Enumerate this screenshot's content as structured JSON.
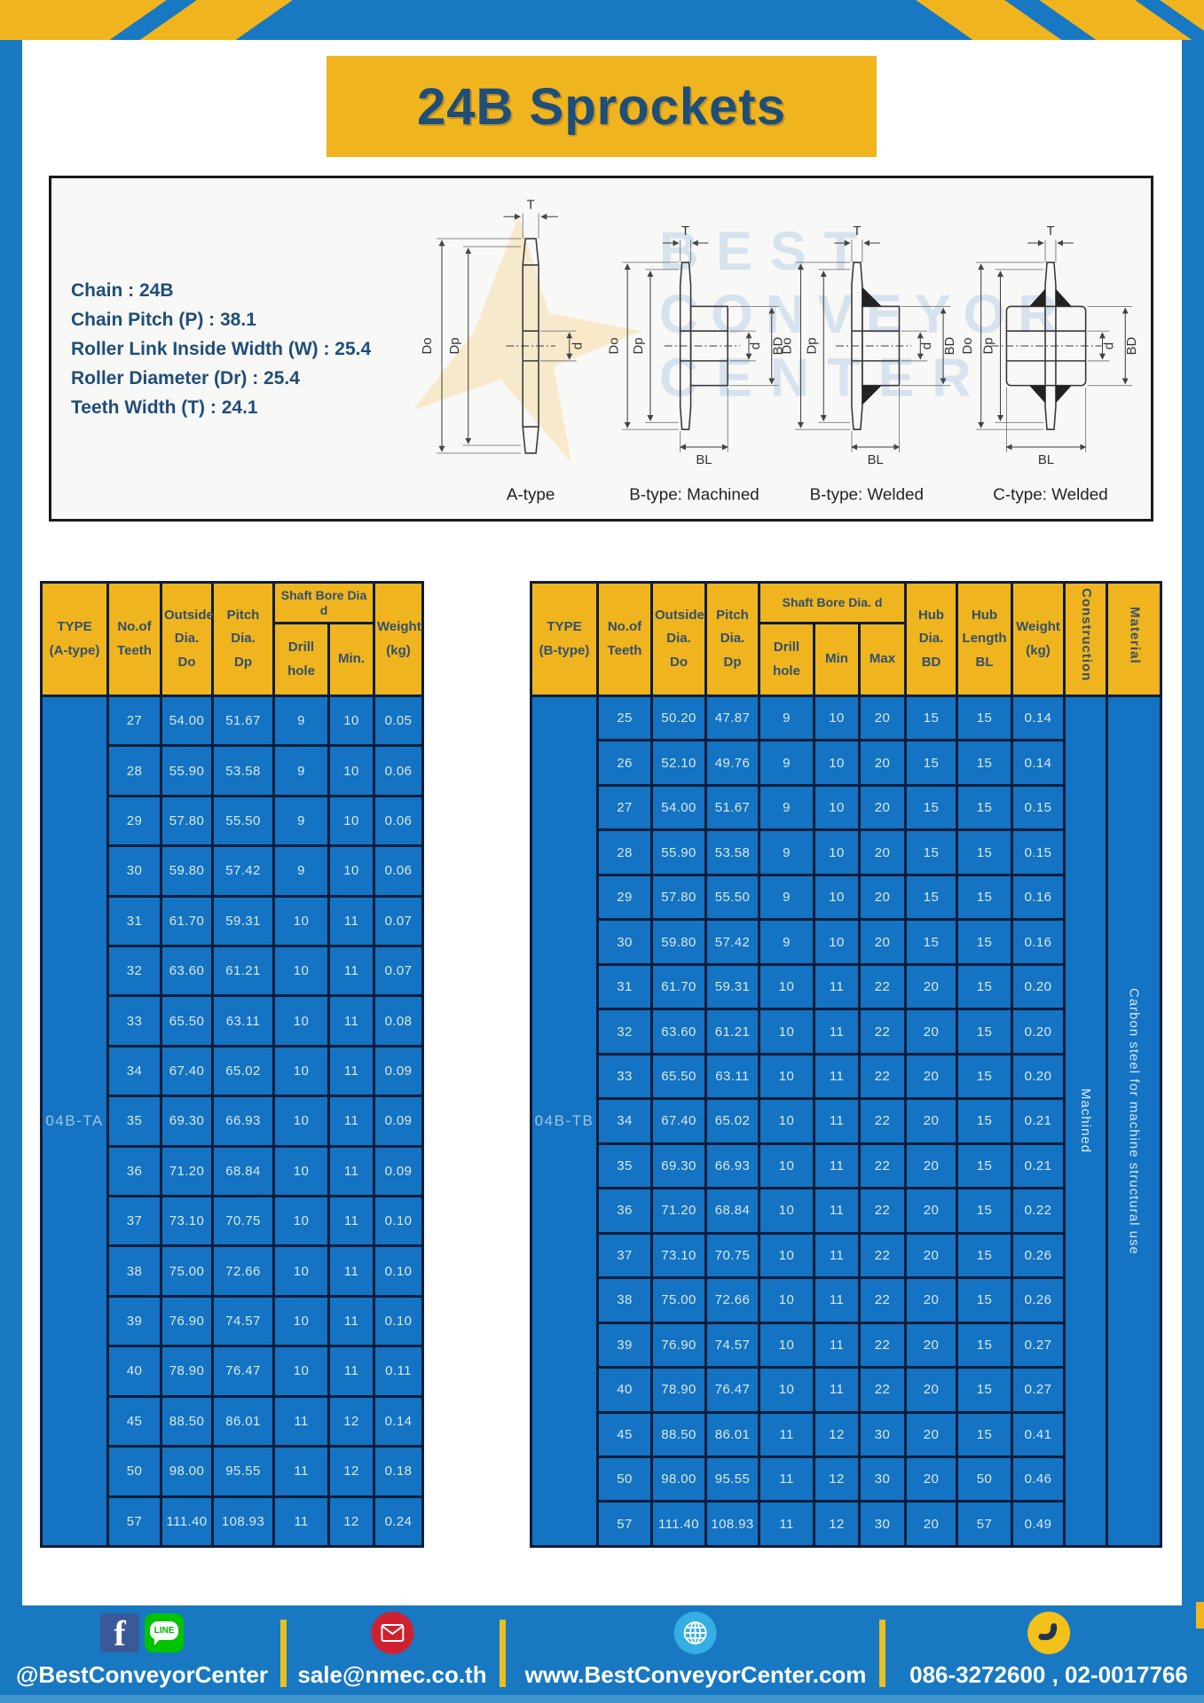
{
  "palette": {
    "frame_blue": "#1878c2",
    "accent_yellow": "#f0b41e",
    "cell_blue": "#1473c2",
    "border_navy": "#0d1d3a",
    "heading_navy": "#1e4e79",
    "cell_text": "#d7e9fa"
  },
  "header": {
    "title": "24B Sprockets"
  },
  "diagram": {
    "specs": [
      "Chain : 24B",
      "Chain Pitch (P) : 38.1",
      "Roller Link Inside Width (W) : 25.4",
      "Roller Diameter (Dr) : 25.4",
      "Teeth Width (T) : 24.1"
    ],
    "captions": [
      "A-type",
      "B-type: Machined",
      "B-type: Welded",
      "C-type: Welded"
    ],
    "dims": {
      "T": "T",
      "Do": "Do",
      "Dp": "Dp",
      "d": "d",
      "BD": "BD",
      "BL": "BL"
    },
    "watermark": [
      "BEST",
      "CONVEYOR",
      "CENTER"
    ]
  },
  "table_a": {
    "type_label": "04B-TA",
    "headers": {
      "type": "TYPE\n(A-type)",
      "teeth": "No.of\nTeeth",
      "outside": "Outside\nDia.\nDo",
      "pitch": "Pitch Dia.\nDp",
      "shaft_group": "Shaft Bore Dia d",
      "drill": "Drill hole",
      "min": "Min.",
      "weight": "Weight\n(kg)"
    },
    "rows": [
      [
        "27",
        "54.00",
        "51.67",
        "9",
        "10",
        "0.05"
      ],
      [
        "28",
        "55.90",
        "53.58",
        "9",
        "10",
        "0.06"
      ],
      [
        "29",
        "57.80",
        "55.50",
        "9",
        "10",
        "0.06"
      ],
      [
        "30",
        "59.80",
        "57.42",
        "9",
        "10",
        "0.06"
      ],
      [
        "31",
        "61.70",
        "59.31",
        "10",
        "11",
        "0.07"
      ],
      [
        "32",
        "63.60",
        "61.21",
        "10",
        "11",
        "0.07"
      ],
      [
        "33",
        "65.50",
        "63.11",
        "10",
        "11",
        "0.08"
      ],
      [
        "34",
        "67.40",
        "65.02",
        "10",
        "11",
        "0.09"
      ],
      [
        "35",
        "69.30",
        "66.93",
        "10",
        "11",
        "0.09"
      ],
      [
        "36",
        "71.20",
        "68.84",
        "10",
        "11",
        "0.09"
      ],
      [
        "37",
        "73.10",
        "70.75",
        "10",
        "11",
        "0.10"
      ],
      [
        "38",
        "75.00",
        "72.66",
        "10",
        "11",
        "0.10"
      ],
      [
        "39",
        "76.90",
        "74.57",
        "10",
        "11",
        "0.10"
      ],
      [
        "40",
        "78.90",
        "76.47",
        "10",
        "11",
        "0.11"
      ],
      [
        "45",
        "88.50",
        "86.01",
        "11",
        "12",
        "0.14"
      ],
      [
        "50",
        "98.00",
        "95.55",
        "11",
        "12",
        "0.18"
      ],
      [
        "57",
        "111.40",
        "108.93",
        "11",
        "12",
        "0.24"
      ]
    ]
  },
  "table_b": {
    "type_label": "04B-TB",
    "headers": {
      "type": "TYPE\n(B-type)",
      "teeth": "No.of\nTeeth",
      "outside": "Outside\nDia.\nDo",
      "pitch": "Pitch\nDia.\nDp",
      "shaft_group": "Shaft Bore Dia. d",
      "drill": "Drill hole",
      "min": "Min",
      "max": "Max",
      "hub_dia": "Hub\nDia.\nBD",
      "hub_len": "Hub\nLength\nBL",
      "weight": "Weight\n(kg)",
      "construction": "Construction",
      "material": "Material"
    },
    "construction_value": "Machined",
    "material_value": "Carbon steel for machine structural use",
    "rows": [
      [
        "25",
        "50.20",
        "47.87",
        "9",
        "10",
        "20",
        "15",
        "15",
        "0.14"
      ],
      [
        "26",
        "52.10",
        "49.76",
        "9",
        "10",
        "20",
        "15",
        "15",
        "0.14"
      ],
      [
        "27",
        "54.00",
        "51.67",
        "9",
        "10",
        "20",
        "15",
        "15",
        "0.15"
      ],
      [
        "28",
        "55.90",
        "53.58",
        "9",
        "10",
        "20",
        "15",
        "15",
        "0.15"
      ],
      [
        "29",
        "57.80",
        "55.50",
        "9",
        "10",
        "20",
        "15",
        "15",
        "0.16"
      ],
      [
        "30",
        "59.80",
        "57.42",
        "9",
        "10",
        "20",
        "15",
        "15",
        "0.16"
      ],
      [
        "31",
        "61.70",
        "59.31",
        "10",
        "11",
        "22",
        "20",
        "15",
        "0.20"
      ],
      [
        "32",
        "63.60",
        "61.21",
        "10",
        "11",
        "22",
        "20",
        "15",
        "0.20"
      ],
      [
        "33",
        "65.50",
        "63.11",
        "10",
        "11",
        "22",
        "20",
        "15",
        "0.20"
      ],
      [
        "34",
        "67.40",
        "65.02",
        "10",
        "11",
        "22",
        "20",
        "15",
        "0.21"
      ],
      [
        "35",
        "69.30",
        "66.93",
        "10",
        "11",
        "22",
        "20",
        "15",
        "0.21"
      ],
      [
        "36",
        "71.20",
        "68.84",
        "10",
        "11",
        "22",
        "20",
        "15",
        "0.22"
      ],
      [
        "37",
        "73.10",
        "70.75",
        "10",
        "11",
        "22",
        "20",
        "15",
        "0.26"
      ],
      [
        "38",
        "75.00",
        "72.66",
        "10",
        "11",
        "22",
        "20",
        "15",
        "0.26"
      ],
      [
        "39",
        "76.90",
        "74.57",
        "10",
        "11",
        "22",
        "20",
        "15",
        "0.27"
      ],
      [
        "40",
        "78.90",
        "76.47",
        "10",
        "11",
        "22",
        "20",
        "15",
        "0.27"
      ],
      [
        "45",
        "88.50",
        "86.01",
        "11",
        "12",
        "30",
        "20",
        "15",
        "0.41"
      ],
      [
        "50",
        "98.00",
        "95.55",
        "11",
        "12",
        "30",
        "20",
        "50",
        "0.46"
      ],
      [
        "57",
        "111.40",
        "108.93",
        "11",
        "12",
        "30",
        "20",
        "57",
        "0.49"
      ]
    ]
  },
  "footer": {
    "handle": "@BestConveyorCenter",
    "email": "sale@nmec.co.th",
    "website": "www.BestConveyorCenter.com",
    "phone": "086-3272600 , 02-0017766",
    "line_label": "LINE",
    "fb_glyph": "f"
  }
}
